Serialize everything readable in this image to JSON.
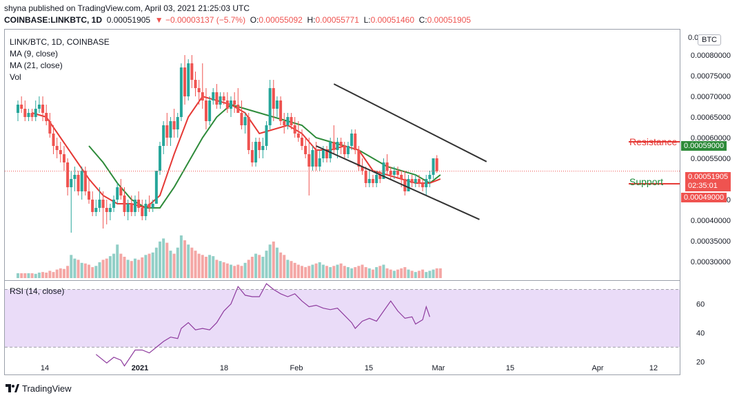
{
  "header": {
    "publish_line": "shyna published on TradingView.com, April 03, 2021 21:25:03 UTC",
    "symbol": "COINBASE:LINKBTC, 1D",
    "last": "0.00051905",
    "change": "▼ −0.00003137 (−5.7%)",
    "o_label": "O:",
    "o_value": "0.00055092",
    "h_label": "H:",
    "h_value": "0.00055771",
    "l_label": "L:",
    "l_value": "0.00051460",
    "c_label": "C:",
    "c_value": "0.00051905"
  },
  "legend": {
    "title": "LINK/BTC, 1D, COINBASE",
    "ma9": "MA (9, close)",
    "ma21": "MA (21, close)",
    "vol": "Vol"
  },
  "rsi": {
    "label": "RSI (14, close)"
  },
  "annotations": {
    "resistance": "Resistance",
    "support": "Support",
    "resistance_value": "0.00059000",
    "current_price": "0.00051905",
    "countdown": "02:35:01",
    "support_value": "0.00049000",
    "currency": "BTC"
  },
  "footer": {
    "brand": "TradingView"
  },
  "colors": {
    "up": "#26a69a",
    "down": "#ef5350",
    "ma9": "#e53935",
    "ma21": "#2e8b3a",
    "vol_up": "#92cfc7",
    "vol_down": "#f4a7a5",
    "rsi_line": "#8e3b9e",
    "rsi_band": "#eadcf8",
    "channel": "#333333",
    "resistance_line": "#e53935",
    "support_line": "#2e8b3a"
  },
  "chart_data": {
    "type": "candlestick",
    "title": "LINK/BTC, 1D, COINBASE",
    "x_tick_labels": [
      "14",
      "2021",
      "18",
      "Feb",
      "15",
      "Mar",
      "15",
      "Apr",
      "12"
    ],
    "y_tick_labels": [
      "0.00080000",
      "0.00075000",
      "0.00070000",
      "0.00065000",
      "0.00060000",
      "0.00055000",
      "0.00050000",
      "0.00045000",
      "0.00040000",
      "0.00035000",
      "0.00030000"
    ],
    "y_top_label": "0.0",
    "ylim": [
      0.00026,
      0.00086
    ],
    "rsi_ticks": [
      "60",
      "40",
      "20"
    ],
    "rsi_ylim": [
      13,
      75
    ],
    "rsi_band": [
      30,
      70
    ],
    "ohlc": [
      [
        0.00066,
        0.00069,
        0.00064,
        0.00068
      ],
      [
        0.00068,
        0.0007,
        0.00066,
        0.00067
      ],
      [
        0.00067,
        0.00069,
        0.00064,
        0.00065
      ],
      [
        0.00065,
        0.00067,
        0.00064,
        0.00066
      ],
      [
        0.00066,
        0.00067,
        0.00064,
        0.00065
      ],
      [
        0.00065,
        0.00069,
        0.00064,
        0.00067
      ],
      [
        0.00067,
        0.0007,
        0.00066,
        0.00068
      ],
      [
        0.00068,
        0.0007,
        0.00064,
        0.00066
      ],
      [
        0.00066,
        0.00068,
        0.00063,
        0.00064
      ],
      [
        0.00064,
        0.00066,
        0.0006,
        0.00061
      ],
      [
        0.00061,
        0.00063,
        0.00056,
        0.00058
      ],
      [
        0.00058,
        0.0006,
        0.00055,
        0.00057
      ],
      [
        0.00057,
        0.00059,
        0.00054,
        0.00056
      ],
      [
        0.00056,
        0.00058,
        0.00052,
        0.00054
      ],
      [
        0.00054,
        0.00055,
        0.00046,
        0.00048
      ],
      [
        0.00048,
        0.00052,
        0.00037,
        0.0005
      ],
      [
        0.0005,
        0.00053,
        0.00047,
        0.00051
      ],
      [
        0.00051,
        0.00052,
        0.00046,
        0.00047
      ],
      [
        0.00047,
        0.00053,
        0.00045,
        0.00052
      ],
      [
        0.00052,
        0.00053,
        0.00046,
        0.00047
      ],
      [
        0.00047,
        0.0005,
        0.00044,
        0.00045
      ],
      [
        0.00045,
        0.00047,
        0.00041,
        0.00042
      ],
      [
        0.00042,
        0.00045,
        0.00041,
        0.00043
      ],
      [
        0.00043,
        0.00048,
        0.00042,
        0.00045
      ],
      [
        0.00045,
        0.00047,
        0.00038,
        0.00043
      ],
      [
        0.00043,
        0.00045,
        0.00039,
        0.00042
      ],
      [
        0.00042,
        0.00044,
        0.0004,
        0.00043
      ],
      [
        0.00043,
        0.00046,
        0.00042,
        0.00045
      ],
      [
        0.00045,
        0.00049,
        0.00044,
        0.00048
      ],
      [
        0.00048,
        0.0005,
        0.00045,
        0.00046
      ],
      [
        0.00046,
        0.00048,
        0.00041,
        0.00042
      ],
      [
        0.00042,
        0.00045,
        0.0004,
        0.00044
      ],
      [
        0.00044,
        0.00046,
        0.00041,
        0.00042
      ],
      [
        0.00042,
        0.00046,
        0.00041,
        0.00045
      ],
      [
        0.00045,
        0.00047,
        0.00042,
        0.00043
      ],
      [
        0.00043,
        0.00045,
        0.0004,
        0.00041
      ],
      [
        0.00041,
        0.00045,
        0.0004,
        0.00044
      ],
      [
        0.00044,
        0.00046,
        0.00042,
        0.00043
      ],
      [
        0.00043,
        0.00045,
        0.00042,
        0.00044
      ],
      [
        0.00044,
        0.00052,
        0.00044,
        0.00052
      ],
      [
        0.00052,
        0.00059,
        0.00051,
        0.00058
      ],
      [
        0.00058,
        0.00064,
        0.00056,
        0.00063
      ],
      [
        0.00063,
        0.00066,
        0.00058,
        0.0006
      ],
      [
        0.0006,
        0.00065,
        0.00058,
        0.00064
      ],
      [
        0.00064,
        0.00067,
        0.0006,
        0.00062
      ],
      [
        0.00062,
        0.00066,
        0.0006,
        0.00065
      ],
      [
        0.00065,
        0.00078,
        0.00064,
        0.00077
      ],
      [
        0.00077,
        0.0008,
        0.00068,
        0.0007
      ],
      [
        0.0007,
        0.00079,
        0.00069,
        0.00078
      ],
      [
        0.00078,
        0.0008,
        0.00072,
        0.00074
      ],
      [
        0.00074,
        0.00076,
        0.0007,
        0.00072
      ],
      [
        0.00072,
        0.00074,
        0.00068,
        0.00071
      ],
      [
        0.00071,
        0.00078,
        0.00067,
        0.00069
      ],
      [
        0.00069,
        0.00072,
        0.00062,
        0.00064
      ],
      [
        0.00064,
        0.0007,
        0.00063,
        0.00069
      ],
      [
        0.00069,
        0.00072,
        0.00068,
        0.00071
      ],
      [
        0.00071,
        0.00073,
        0.00067,
        0.00068
      ],
      [
        0.00068,
        0.00071,
        0.00067,
        0.0007
      ],
      [
        0.0007,
        0.00071,
        0.00068,
        0.00069
      ],
      [
        0.00069,
        0.00071,
        0.00066,
        0.00067
      ],
      [
        0.00067,
        0.0007,
        0.00065,
        0.00069
      ],
      [
        0.00069,
        0.00071,
        0.00066,
        0.00068
      ],
      [
        0.00068,
        0.00072,
        0.00066,
        0.00066
      ],
      [
        0.00066,
        0.00069,
        0.00062,
        0.00063
      ],
      [
        0.00063,
        0.00066,
        0.00061,
        0.00065
      ],
      [
        0.00065,
        0.00066,
        0.00056,
        0.00057
      ],
      [
        0.00057,
        0.00059,
        0.00053,
        0.00054
      ],
      [
        0.00054,
        0.0006,
        0.00053,
        0.00059
      ],
      [
        0.00059,
        0.0006,
        0.00055,
        0.00057
      ],
      [
        0.00057,
        0.0006,
        0.00055,
        0.00058
      ],
      [
        0.00058,
        0.00064,
        0.00057,
        0.00063
      ],
      [
        0.00063,
        0.00074,
        0.00062,
        0.00072
      ],
      [
        0.00072,
        0.00074,
        0.00064,
        0.00067
      ],
      [
        0.00067,
        0.0007,
        0.00065,
        0.00069
      ],
      [
        0.00069,
        0.0007,
        0.00063,
        0.00064
      ],
      [
        0.00064,
        0.00066,
        0.00061,
        0.00063
      ],
      [
        0.00063,
        0.00066,
        0.00062,
        0.00065
      ],
      [
        0.00065,
        0.00066,
        0.00062,
        0.00063
      ],
      [
        0.00063,
        0.00065,
        0.0006,
        0.00061
      ],
      [
        0.00061,
        0.00064,
        0.00059,
        0.0006
      ],
      [
        0.0006,
        0.00062,
        0.00057,
        0.00058
      ],
      [
        0.00058,
        0.0006,
        0.00055,
        0.00056
      ],
      [
        0.00056,
        0.0006,
        0.00046,
        0.00053
      ],
      [
        0.00053,
        0.00058,
        0.00052,
        0.00057
      ],
      [
        0.00057,
        0.00059,
        0.00052,
        0.00053
      ],
      [
        0.00053,
        0.00057,
        0.00052,
        0.00055
      ],
      [
        0.00055,
        0.00058,
        0.00054,
        0.00057
      ],
      [
        0.00057,
        0.00058,
        0.00054,
        0.00055
      ],
      [
        0.00055,
        0.0006,
        0.00054,
        0.00059
      ],
      [
        0.00059,
        0.00063,
        0.00056,
        0.00057
      ],
      [
        0.00057,
        0.0006,
        0.00055,
        0.00059
      ],
      [
        0.00059,
        0.0006,
        0.00056,
        0.00058
      ],
      [
        0.00058,
        0.00059,
        0.00055,
        0.00056
      ],
      [
        0.00056,
        0.00059,
        0.00055,
        0.00058
      ],
      [
        0.00058,
        0.00062,
        0.00057,
        0.00061
      ],
      [
        0.00061,
        0.00062,
        0.00056,
        0.00057
      ],
      [
        0.00057,
        0.00058,
        0.00052,
        0.00053
      ],
      [
        0.00053,
        0.00055,
        0.00051,
        0.00052
      ],
      [
        0.00052,
        0.00053,
        0.00048,
        0.00049
      ],
      [
        0.00049,
        0.00052,
        0.00048,
        0.0005
      ],
      [
        0.0005,
        0.00051,
        0.00048,
        0.00049
      ],
      [
        0.00049,
        0.00052,
        0.00048,
        0.00051
      ],
      [
        0.00051,
        0.00052,
        0.00049,
        0.0005
      ],
      [
        0.0005,
        0.00055,
        0.0005,
        0.00054
      ],
      [
        0.00054,
        0.00056,
        0.00051,
        0.00052
      ],
      [
        0.00052,
        0.00053,
        0.0005,
        0.00051
      ],
      [
        0.00051,
        0.00053,
        0.0005,
        0.00052
      ],
      [
        0.00052,
        0.00053,
        0.0005,
        0.00051
      ],
      [
        0.00051,
        0.00052,
        0.00048,
        0.0005
      ],
      [
        0.0005,
        0.00052,
        0.00046,
        0.00047
      ],
      [
        0.00047,
        0.00051,
        0.00047,
        0.0005
      ],
      [
        0.0005,
        0.00051,
        0.00048,
        0.00049
      ],
      [
        0.00049,
        0.00051,
        0.00048,
        0.0005
      ],
      [
        0.0005,
        0.00051,
        0.00048,
        0.00049
      ],
      [
        0.00049,
        0.0005,
        0.00047,
        0.00048
      ],
      [
        0.00048,
        0.00051,
        0.00046,
        0.0005
      ],
      [
        0.0005,
        0.00052,
        0.00048,
        0.00051
      ],
      [
        0.00051,
        0.00055,
        0.0005,
        0.00055
      ],
      [
        0.00055,
        0.00055771,
        0.0005146,
        0.00051905
      ]
    ],
    "ma9": [
      [
        4,
        0.00066
      ],
      [
        8,
        0.00065
      ],
      [
        12,
        0.0006
      ],
      [
        16,
        0.00055
      ],
      [
        20,
        0.0005
      ],
      [
        24,
        0.00046
      ],
      [
        28,
        0.00044
      ],
      [
        32,
        0.00044
      ],
      [
        36,
        0.00043
      ],
      [
        40,
        0.00046
      ],
      [
        44,
        0.00056
      ],
      [
        48,
        0.00065
      ],
      [
        52,
        0.0007
      ],
      [
        56,
        0.00069
      ],
      [
        60,
        0.00068
      ],
      [
        64,
        0.00066
      ],
      [
        68,
        0.00061
      ],
      [
        72,
        0.00062
      ],
      [
        76,
        0.00063
      ],
      [
        80,
        0.00061
      ],
      [
        84,
        0.00057
      ],
      [
        88,
        0.00057
      ],
      [
        92,
        0.00058
      ],
      [
        96,
        0.00057
      ],
      [
        100,
        0.00052
      ],
      [
        104,
        0.00051
      ],
      [
        108,
        0.0005
      ],
      [
        112,
        0.00049
      ],
      [
        116,
        0.00049
      ],
      [
        119,
        0.0005
      ]
    ],
    "ma21": [
      [
        20,
        0.00058
      ],
      [
        24,
        0.00054
      ],
      [
        28,
        0.00049
      ],
      [
        32,
        0.00045
      ],
      [
        36,
        0.00043
      ],
      [
        40,
        0.00043
      ],
      [
        44,
        0.00048
      ],
      [
        48,
        0.00054
      ],
      [
        52,
        0.0006
      ],
      [
        56,
        0.00065
      ],
      [
        60,
        0.00068
      ],
      [
        64,
        0.00067
      ],
      [
        68,
        0.00066
      ],
      [
        72,
        0.00065
      ],
      [
        76,
        0.00064
      ],
      [
        80,
        0.00063
      ],
      [
        84,
        0.0006
      ],
      [
        88,
        0.00059
      ],
      [
        92,
        0.00058
      ],
      [
        96,
        0.00057
      ],
      [
        100,
        0.00055
      ],
      [
        104,
        0.00053
      ],
      [
        108,
        0.00052
      ],
      [
        112,
        0.00051
      ],
      [
        116,
        0.00049
      ],
      [
        119,
        0.00051
      ]
    ],
    "volume": [
      8,
      8,
      8,
      8,
      8,
      7,
      9,
      10,
      9,
      12,
      10,
      14,
      16,
      15,
      20,
      38,
      32,
      30,
      25,
      24,
      22,
      18,
      20,
      26,
      30,
      32,
      36,
      40,
      55,
      40,
      35,
      30,
      28,
      32,
      30,
      34,
      38,
      40,
      42,
      50,
      60,
      65,
      58,
      45,
      40,
      50,
      70,
      62,
      55,
      50,
      45,
      40,
      38,
      35,
      38,
      36,
      30,
      28,
      26,
      24,
      22,
      20,
      22,
      20,
      25,
      30,
      35,
      40,
      38,
      35,
      45,
      55,
      60,
      50,
      42,
      38,
      30,
      28,
      25,
      22,
      20,
      18,
      20,
      22,
      24,
      26,
      22,
      20,
      18,
      20,
      22,
      24,
      20,
      18,
      16,
      18,
      20,
      22,
      18,
      16,
      14,
      18,
      20,
      22,
      16,
      14,
      12,
      14,
      16,
      18,
      14,
      12,
      10,
      12,
      14,
      10,
      12,
      14,
      16,
      16
    ],
    "rsi": [
      [
        22,
        25
      ],
      [
        25,
        19
      ],
      [
        27,
        23
      ],
      [
        29,
        21
      ],
      [
        30,
        17
      ],
      [
        33,
        28
      ],
      [
        35,
        28
      ],
      [
        37,
        26
      ],
      [
        39,
        30
      ],
      [
        41,
        34
      ],
      [
        43,
        37
      ],
      [
        45,
        36
      ],
      [
        46,
        43
      ],
      [
        48,
        47
      ],
      [
        50,
        42
      ],
      [
        52,
        43
      ],
      [
        54,
        42
      ],
      [
        56,
        47
      ],
      [
        58,
        55
      ],
      [
        60,
        60
      ],
      [
        62,
        72
      ],
      [
        64,
        66
      ],
      [
        66,
        65
      ],
      [
        68,
        65
      ],
      [
        70,
        74
      ],
      [
        72,
        70
      ],
      [
        74,
        67
      ],
      [
        76,
        65
      ],
      [
        78,
        67
      ],
      [
        80,
        62
      ],
      [
        82,
        58
      ],
      [
        84,
        59
      ],
      [
        86,
        57
      ],
      [
        88,
        56
      ],
      [
        90,
        57
      ],
      [
        92,
        52
      ],
      [
        94,
        47
      ],
      [
        95,
        43
      ],
      [
        97,
        48
      ],
      [
        99,
        50
      ],
      [
        101,
        48
      ],
      [
        103,
        55
      ],
      [
        105,
        62
      ],
      [
        107,
        55
      ],
      [
        109,
        50
      ],
      [
        111,
        51
      ],
      [
        112,
        46
      ],
      [
        114,
        49
      ],
      [
        115,
        58
      ],
      [
        116,
        51
      ]
    ],
    "rsi_index_offset": 0,
    "channel_upper": [
      [
        89,
        0.00073
      ],
      [
        132,
        0.000542
      ]
    ],
    "channel_lower": [
      [
        84,
        0.00058
      ],
      [
        130,
        0.000402
      ]
    ],
    "resistance": 0.00059,
    "support": 0.00049,
    "current": 0.00051905
  }
}
